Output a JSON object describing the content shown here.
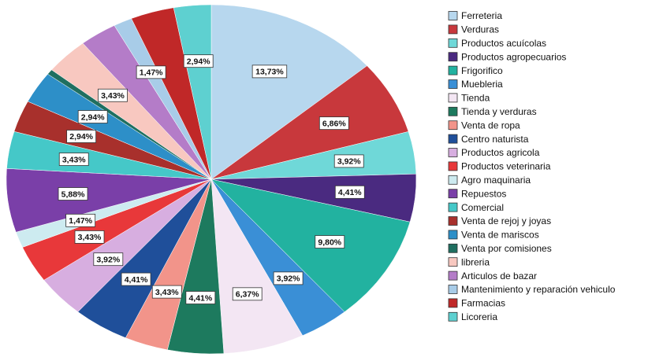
{
  "chart_data": {
    "type": "pie",
    "categories": [
      "Ferreteria",
      "Verduras",
      "Productos acuícolas",
      "Productos agropecuarios",
      "Frigorifico",
      "Muebleria",
      "Tienda",
      "Tienda y verduras",
      "Venta de ropa",
      "Centro naturista",
      "Productos agricola",
      "Productos veterinaria",
      "Agro maquinaria",
      "Repuestos",
      "Comercial",
      "Venta de rejoj y joyas",
      "Venta de mariscos",
      "Venta por comisiones",
      "libreria",
      "Articulos de bazar",
      "Mantenimiento y reparación vehiculo",
      "Farmacias",
      "Licoreria"
    ],
    "values": [
      13.73,
      6.86,
      3.92,
      4.41,
      9.8,
      3.92,
      6.37,
      4.41,
      3.43,
      4.41,
      3.92,
      3.43,
      1.47,
      5.88,
      3.43,
      2.94,
      2.94,
      0.49,
      3.43,
      2.94,
      1.47,
      3.43,
      2.94
    ],
    "value_labels": [
      "13,73%",
      "6,86%",
      "3,92%",
      "4,41%",
      "9,80%",
      "3,92%",
      "6,37%",
      "4,41%",
      "3,43%",
      "4,41%",
      "3,92%",
      "3,43%",
      "1,47%",
      "5,88%",
      "3,43%",
      "2,94%",
      "2,94%",
      null,
      "3,43%",
      null,
      "1,47%",
      null,
      "2,94%"
    ],
    "colors": [
      "#b7d7ee",
      "#c8383c",
      "#6fd8d8",
      "#4a2a80",
      "#22b2a0",
      "#3a8fd6",
      "#f3e6f3",
      "#1d7a5e",
      "#f2948a",
      "#1f4f9a",
      "#d7aee0",
      "#e8383a",
      "#cdebf0",
      "#7a3fa8",
      "#45c8c8",
      "#a8302c",
      "#2d8fc8",
      "#1f6f60",
      "#f8c8c0",
      "#b47cc8",
      "#a8cce8",
      "#c02828",
      "#5ed0d0"
    ],
    "legend": "right"
  }
}
